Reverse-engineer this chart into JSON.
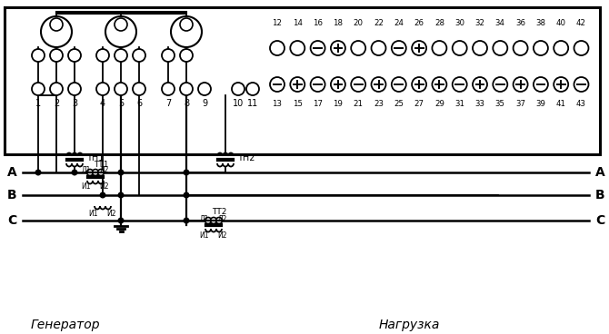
{
  "bg_color": "#ffffff",
  "title_generator": "Генератор",
  "title_load": "Нагрузка",
  "top_terminals_upper": [
    "12",
    "14",
    "16",
    "18",
    "20",
    "22",
    "24",
    "26",
    "28",
    "30",
    "32",
    "34",
    "36",
    "38",
    "40",
    "42"
  ],
  "top_terminals_lower": [
    "13",
    "15",
    "17",
    "19",
    "21",
    "23",
    "25",
    "27",
    "29",
    "31",
    "33",
    "35",
    "37",
    "39",
    "41",
    "43"
  ],
  "upper_row_marks": [
    " ",
    " ",
    "-",
    "+",
    " ",
    " ",
    "-",
    "+",
    " ",
    " ",
    " ",
    " ",
    " ",
    " ",
    " ",
    " "
  ],
  "lower_row_marks": [
    "-",
    "+",
    "-",
    "+",
    "-",
    "+",
    "-",
    "+",
    "+",
    "-",
    "+",
    "-",
    "+",
    "-",
    "+",
    "-"
  ],
  "left_terminals": [
    "1",
    "2",
    "3",
    "4",
    "5",
    "6",
    "7",
    "8",
    "9"
  ],
  "term10": "10",
  "term11": "11",
  "TH1_label": "ТН1",
  "TH2_label": "ТН2",
  "TT1_label": "ТТ1",
  "TT2_label": "ТТ2",
  "L1_label": "Л1",
  "L2_label": "Л2",
  "I1_label": "И1",
  "I2_label": "И2"
}
